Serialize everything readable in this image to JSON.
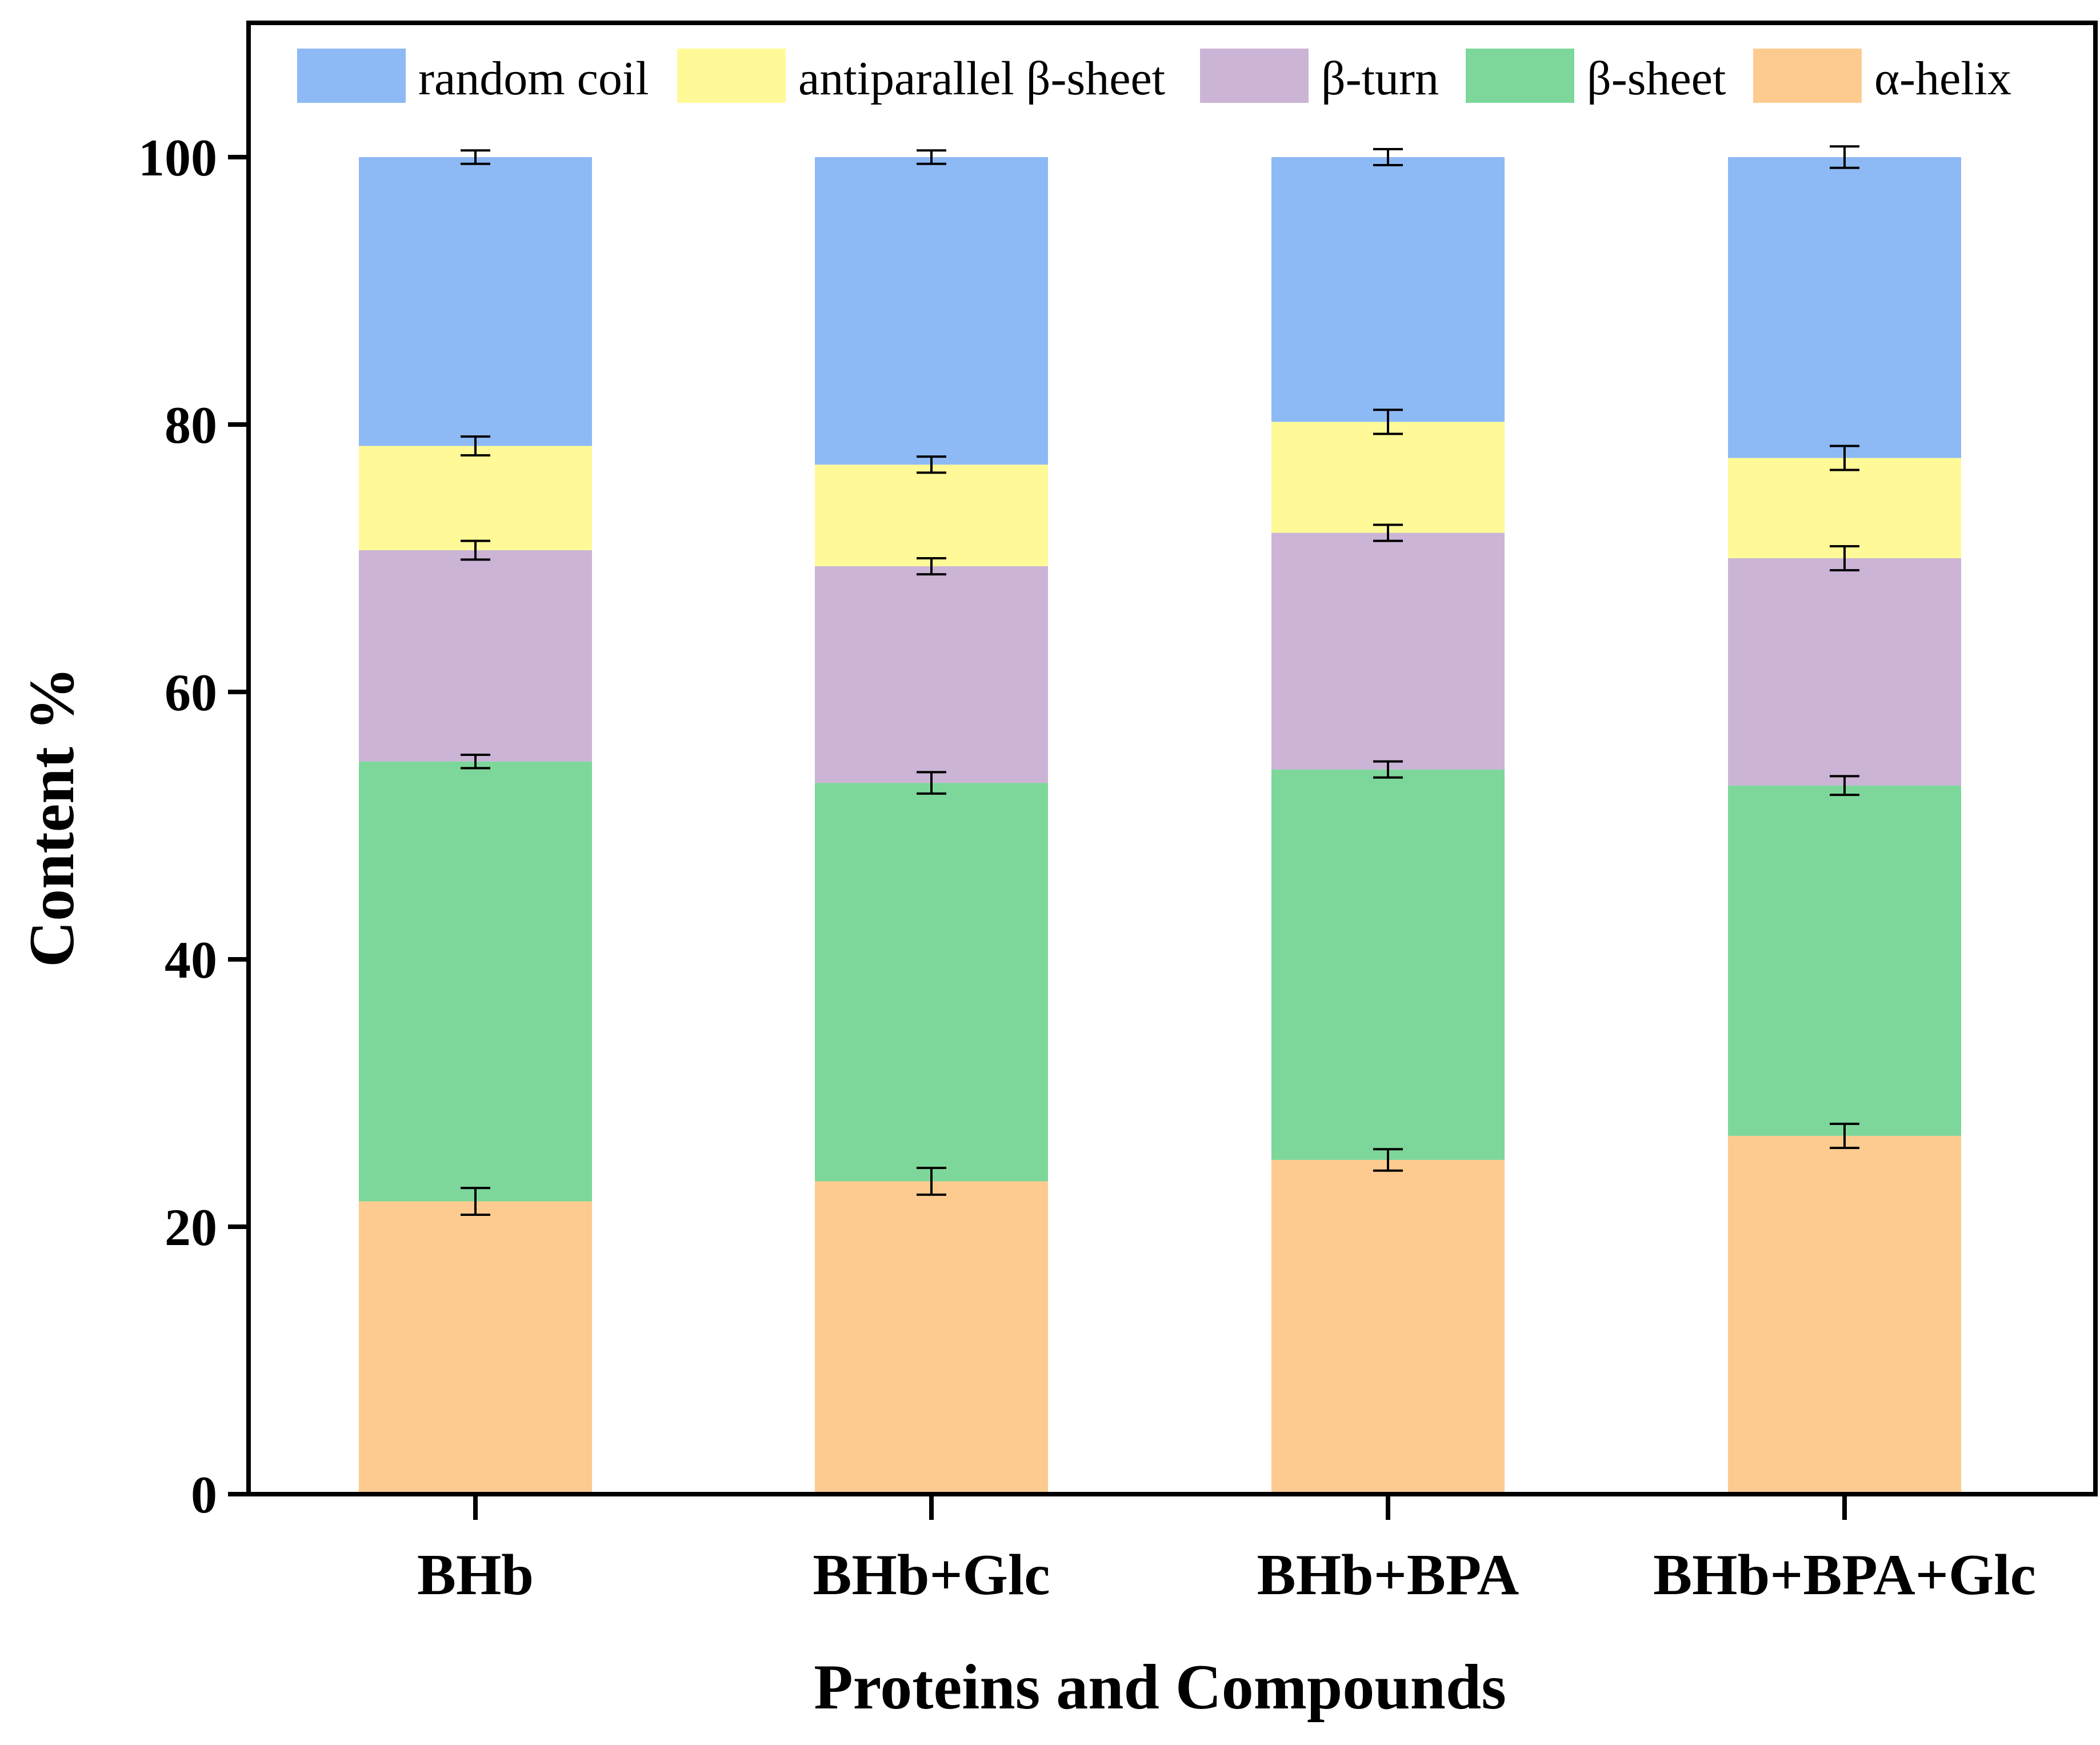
{
  "chart_data": {
    "type": "bar",
    "stacked": true,
    "title": "",
    "xlabel": "Proteins and Compounds",
    "ylabel": "Content %",
    "ylim": [
      0,
      110
    ],
    "yticks": [
      0,
      20,
      40,
      60,
      80,
      100
    ],
    "categories": [
      "BHb",
      "BHb+Glc",
      "BHb+BPA",
      "BHb+BPA+Glc"
    ],
    "legend_position": "top",
    "series": [
      {
        "name": "α-helix",
        "color": "#FDCB8F",
        "values": [
          21.9,
          23.4,
          25.0,
          26.8
        ],
        "errors": [
          1.0,
          1.0,
          0.8,
          0.9
        ]
      },
      {
        "name": "β-sheet",
        "color": "#7DD79A",
        "values": [
          32.9,
          29.8,
          29.2,
          26.2
        ],
        "errors": [
          0.5,
          0.8,
          0.6,
          0.7
        ]
      },
      {
        "name": "β-turn",
        "color": "#CBB4D6",
        "values": [
          15.8,
          16.2,
          17.7,
          17.0
        ],
        "errors": [
          0.7,
          0.6,
          0.6,
          0.9
        ]
      },
      {
        "name": "antiparallel β-sheet",
        "color": "#FFFA97",
        "values": [
          7.8,
          7.6,
          8.3,
          7.5
        ],
        "errors": [
          0.7,
          0.6,
          0.9,
          0.9
        ]
      },
      {
        "name": "random coil",
        "color": "#8DBAF5",
        "values": [
          21.6,
          23.0,
          19.8,
          22.5
        ],
        "errors": [
          0.5,
          0.5,
          0.6,
          0.8
        ]
      }
    ],
    "legend_order": [
      "random coil",
      "antiparallel β-sheet",
      "β-turn",
      "β-sheet",
      "α-helix"
    ]
  }
}
